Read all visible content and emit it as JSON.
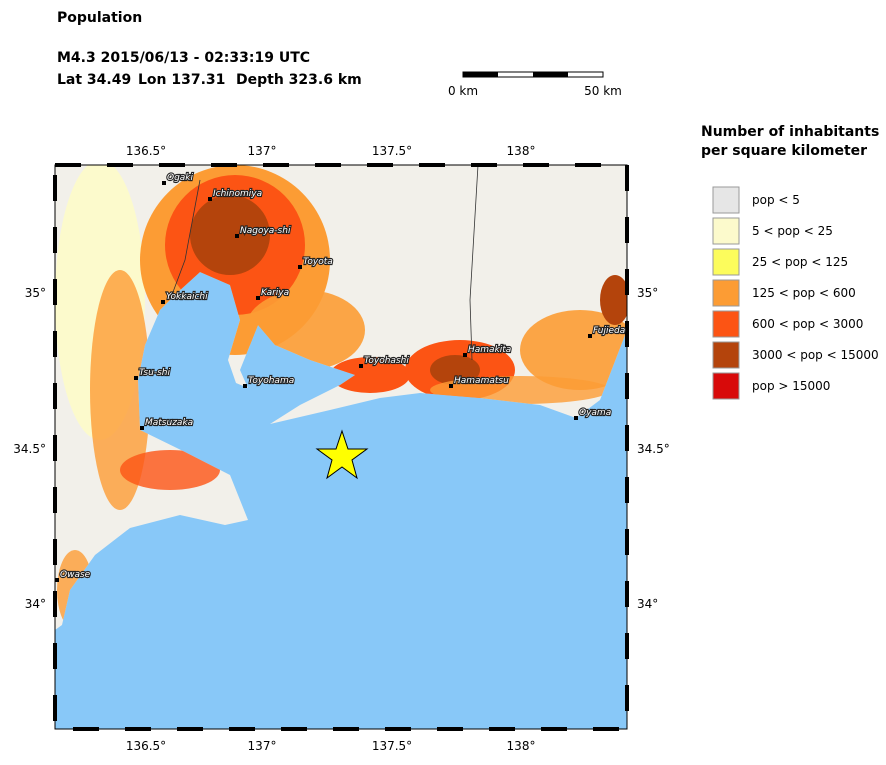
{
  "header": {
    "title": "Population",
    "event": "M4.3  2015/06/13 - 02:33:19 UTC",
    "lat": "Lat 34.49",
    "lon": "Lon 137.31",
    "depth": "Depth 323.6 km"
  },
  "scale": {
    "left": "0 km",
    "right": "50 km"
  },
  "legend": {
    "title": [
      "Number of inhabitants",
      "per square kilometer"
    ],
    "items": [
      {
        "label": "pop < 5",
        "color": "#e6e6e6"
      },
      {
        "label": "5 < pop < 25",
        "color": "#fcfacc"
      },
      {
        "label": "25 < pop < 125",
        "color": "#fcfc5c"
      },
      {
        "label": "125 < pop < 600",
        "color": "#fc9c34"
      },
      {
        "label": "600 < pop < 3000",
        "color": "#fc5414"
      },
      {
        "label": "3000 < pop < 15000",
        "color": "#b4440c"
      },
      {
        "label": "pop > 15000",
        "color": "#d80a0a"
      }
    ]
  },
  "axes": {
    "lon": [
      "136.5°",
      "137°",
      "137.5°",
      "138°"
    ],
    "lat": [
      "35°",
      "34.5°",
      "34°"
    ]
  },
  "cities": [
    "Ogaki",
    "Ichinomiya",
    "Nagoya-shi",
    "Toyota",
    "Yokkaichi",
    "Kariya",
    "Fujieda",
    "Hamakita",
    "Toyohashi",
    "Tsu-shi",
    "Toyohama",
    "Hamamatsu",
    "Matsuzaka",
    "Oyama",
    "Owase"
  ]
}
